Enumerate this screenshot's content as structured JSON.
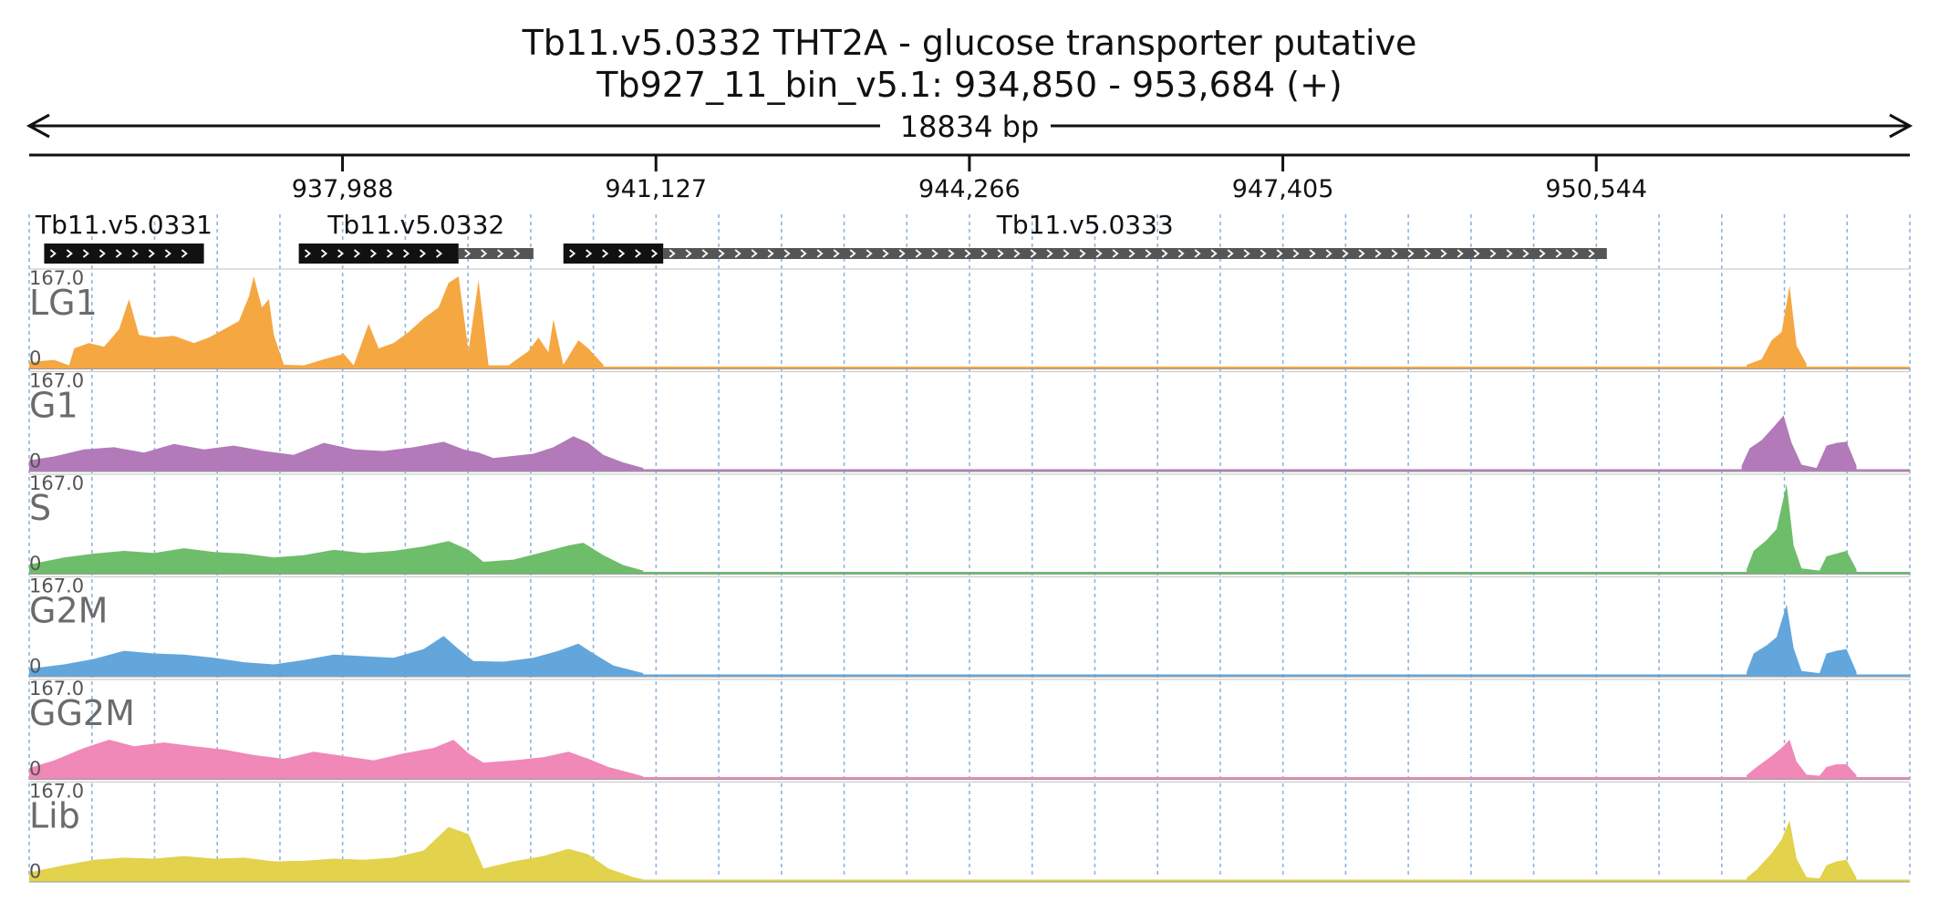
{
  "header": {
    "title_line1": "Tb11.v5.0332  THT2A - glucose transporter  putative",
    "title_line2": "Tb927_11_bin_v5.1: 934,850 - 953,684 (+)",
    "span_label": "18834 bp"
  },
  "chart_data": {
    "type": "area",
    "region": {
      "chromosome": "Tb927_11_bin_v5.1",
      "start": 934850,
      "end": 953684,
      "strand": "+"
    },
    "ticks": [
      {
        "position": 937988,
        "label": "937,988"
      },
      {
        "position": 941127,
        "label": "941,127"
      },
      {
        "position": 944266,
        "label": "944,266"
      },
      {
        "position": 947405,
        "label": "947,405"
      },
      {
        "position": 950544,
        "label": "950,544"
      }
    ],
    "genes": [
      {
        "name": "Tb11.v5.0331",
        "label": "Tb11.v5.0331",
        "cds": [
          935000,
          936600
        ],
        "utr": []
      },
      {
        "name": "Tb11.v5.0332",
        "label": "Tb11.v5.0332",
        "cds": [
          937550,
          939150
        ],
        "utr": [
          [
            939150,
            939900
          ]
        ]
      },
      {
        "name": "Tb11.v5.0333",
        "label": "Tb11.v5.0333",
        "cds": [
          940200,
          941200
        ],
        "utr": [
          [
            941200,
            950650
          ]
        ]
      }
    ],
    "y_range": [
      0,
      167
    ],
    "ymax_label": "167.0",
    "ymin_label": "0",
    "tracks": [
      {
        "name": "LG1",
        "color": "#f5a742",
        "points": [
          [
            934850,
            10
          ],
          [
            935100,
            14
          ],
          [
            935250,
            4
          ],
          [
            935300,
            35
          ],
          [
            935450,
            45
          ],
          [
            935600,
            38
          ],
          [
            935750,
            70
          ],
          [
            935850,
            125
          ],
          [
            935950,
            60
          ],
          [
            936100,
            55
          ],
          [
            936300,
            58
          ],
          [
            936500,
            45
          ],
          [
            936650,
            55
          ],
          [
            936800,
            70
          ],
          [
            936950,
            85
          ],
          [
            937050,
            130
          ],
          [
            937100,
            180
          ],
          [
            937180,
            110
          ],
          [
            937250,
            125
          ],
          [
            937300,
            60
          ],
          [
            937400,
            5
          ],
          [
            937600,
            4
          ],
          [
            937800,
            15
          ],
          [
            938000,
            25
          ],
          [
            938100,
            4
          ],
          [
            938250,
            80
          ],
          [
            938350,
            35
          ],
          [
            938500,
            45
          ],
          [
            938650,
            65
          ],
          [
            938800,
            90
          ],
          [
            938950,
            110
          ],
          [
            939050,
            155
          ],
          [
            939150,
            175
          ],
          [
            939250,
            30
          ],
          [
            939350,
            160
          ],
          [
            939450,
            4
          ],
          [
            939650,
            4
          ],
          [
            939850,
            30
          ],
          [
            939950,
            55
          ],
          [
            940050,
            28
          ],
          [
            940100,
            88
          ],
          [
            940200,
            5
          ],
          [
            940350,
            50
          ],
          [
            940450,
            35
          ],
          [
            940600,
            5
          ]
        ]
      },
      {
        "name": "G1",
        "color": "#b27ab9",
        "points": [
          [
            934850,
            18
          ],
          [
            935100,
            25
          ],
          [
            935400,
            38
          ],
          [
            935700,
            42
          ],
          [
            936000,
            32
          ],
          [
            936300,
            48
          ],
          [
            936600,
            38
          ],
          [
            936900,
            45
          ],
          [
            937200,
            35
          ],
          [
            937500,
            28
          ],
          [
            937800,
            50
          ],
          [
            938100,
            38
          ],
          [
            938400,
            35
          ],
          [
            938700,
            42
          ],
          [
            939000,
            52
          ],
          [
            939200,
            38
          ],
          [
            939350,
            32
          ],
          [
            939500,
            22
          ],
          [
            939700,
            26
          ],
          [
            939900,
            30
          ],
          [
            940100,
            42
          ],
          [
            940300,
            62
          ],
          [
            940450,
            50
          ],
          [
            940600,
            28
          ],
          [
            940800,
            14
          ],
          [
            941000,
            4
          ]
        ]
      },
      {
        "name": "S",
        "color": "#6ebd6a",
        "points": [
          [
            934850,
            15
          ],
          [
            935200,
            28
          ],
          [
            935500,
            35
          ],
          [
            935800,
            40
          ],
          [
            936100,
            36
          ],
          [
            936400,
            45
          ],
          [
            936700,
            38
          ],
          [
            937000,
            35
          ],
          [
            937300,
            28
          ],
          [
            937600,
            32
          ],
          [
            937900,
            42
          ],
          [
            938200,
            36
          ],
          [
            938500,
            40
          ],
          [
            938800,
            48
          ],
          [
            939050,
            58
          ],
          [
            939250,
            42
          ],
          [
            939400,
            20
          ],
          [
            939700,
            24
          ],
          [
            940000,
            38
          ],
          [
            940250,
            50
          ],
          [
            940400,
            55
          ],
          [
            940600,
            32
          ],
          [
            940800,
            14
          ],
          [
            941000,
            4
          ]
        ]
      },
      {
        "name": "G2M",
        "color": "#62a6dc",
        "points": [
          [
            934850,
            12
          ],
          [
            935200,
            20
          ],
          [
            935500,
            30
          ],
          [
            935800,
            45
          ],
          [
            936100,
            40
          ],
          [
            936400,
            38
          ],
          [
            936700,
            32
          ],
          [
            937000,
            24
          ],
          [
            937300,
            20
          ],
          [
            937600,
            28
          ],
          [
            937900,
            38
          ],
          [
            938200,
            35
          ],
          [
            938500,
            32
          ],
          [
            938800,
            48
          ],
          [
            939000,
            72
          ],
          [
            939150,
            48
          ],
          [
            939300,
            26
          ],
          [
            939600,
            25
          ],
          [
            939900,
            32
          ],
          [
            940150,
            45
          ],
          [
            940350,
            58
          ],
          [
            940500,
            40
          ],
          [
            940700,
            18
          ],
          [
            941000,
            4
          ]
        ]
      },
      {
        "name": "GG2M",
        "color": "#f088b8",
        "points": [
          [
            934850,
            18
          ],
          [
            935100,
            32
          ],
          [
            935400,
            55
          ],
          [
            935650,
            70
          ],
          [
            935900,
            58
          ],
          [
            936200,
            65
          ],
          [
            936500,
            58
          ],
          [
            936800,
            52
          ],
          [
            937100,
            42
          ],
          [
            937400,
            35
          ],
          [
            937700,
            48
          ],
          [
            938000,
            40
          ],
          [
            938300,
            32
          ],
          [
            938600,
            45
          ],
          [
            938900,
            55
          ],
          [
            939100,
            70
          ],
          [
            939250,
            45
          ],
          [
            939400,
            28
          ],
          [
            939700,
            32
          ],
          [
            940000,
            38
          ],
          [
            940250,
            48
          ],
          [
            940450,
            35
          ],
          [
            940650,
            20
          ],
          [
            940900,
            8
          ],
          [
            941000,
            3
          ]
        ]
      },
      {
        "name": "Lib",
        "color": "#e2d24c",
        "points": [
          [
            934850,
            15
          ],
          [
            935200,
            28
          ],
          [
            935500,
            38
          ],
          [
            935800,
            42
          ],
          [
            936100,
            40
          ],
          [
            936400,
            45
          ],
          [
            936700,
            40
          ],
          [
            937000,
            42
          ],
          [
            937300,
            35
          ],
          [
            937600,
            36
          ],
          [
            937900,
            40
          ],
          [
            938200,
            38
          ],
          [
            938500,
            42
          ],
          [
            938800,
            55
          ],
          [
            939050,
            98
          ],
          [
            939250,
            85
          ],
          [
            939400,
            22
          ],
          [
            939700,
            35
          ],
          [
            940000,
            45
          ],
          [
            940250,
            58
          ],
          [
            940450,
            48
          ],
          [
            940650,
            22
          ],
          [
            940900,
            6
          ],
          [
            941000,
            2
          ]
        ]
      }
    ],
    "secondary": [
      [
        [
          952050,
          5
        ],
        [
          952200,
          15
        ],
        [
          952300,
          50
        ],
        [
          952400,
          65
        ],
        [
          952480,
          150
        ],
        [
          952550,
          40
        ],
        [
          952650,
          6
        ]
      ],
      [
        [
          952000,
          8
        ],
        [
          952080,
          40
        ],
        [
          952200,
          55
        ],
        [
          952300,
          75
        ],
        [
          952420,
          100
        ],
        [
          952500,
          50
        ],
        [
          952600,
          10
        ],
        [
          952750,
          4
        ],
        [
          952850,
          45
        ],
        [
          952950,
          50
        ],
        [
          953050,
          52
        ],
        [
          953150,
          8
        ]
      ],
      [
        [
          952050,
          6
        ],
        [
          952120,
          40
        ],
        [
          952250,
          60
        ],
        [
          952350,
          80
        ],
        [
          952450,
          162
        ],
        [
          952520,
          50
        ],
        [
          952600,
          8
        ],
        [
          952780,
          4
        ],
        [
          952850,
          30
        ],
        [
          952950,
          35
        ],
        [
          953050,
          40
        ],
        [
          953150,
          6
        ]
      ],
      [
        [
          952050,
          6
        ],
        [
          952120,
          40
        ],
        [
          952250,
          55
        ],
        [
          952350,
          70
        ],
        [
          952450,
          130
        ],
        [
          952520,
          50
        ],
        [
          952600,
          8
        ],
        [
          952780,
          4
        ],
        [
          952850,
          40
        ],
        [
          952950,
          45
        ],
        [
          953050,
          48
        ],
        [
          953150,
          6
        ]
      ],
      [
        [
          952050,
          5
        ],
        [
          952150,
          20
        ],
        [
          952300,
          40
        ],
        [
          952400,
          55
        ],
        [
          952480,
          70
        ],
        [
          952550,
          30
        ],
        [
          952650,
          6
        ],
        [
          952780,
          4
        ],
        [
          952850,
          20
        ],
        [
          952950,
          25
        ],
        [
          953050,
          25
        ],
        [
          953150,
          5
        ]
      ],
      [
        [
          952050,
          5
        ],
        [
          952150,
          20
        ],
        [
          952300,
          50
        ],
        [
          952400,
          75
        ],
        [
          952480,
          110
        ],
        [
          952550,
          40
        ],
        [
          952650,
          6
        ],
        [
          952780,
          4
        ],
        [
          952850,
          28
        ],
        [
          952950,
          35
        ],
        [
          953050,
          38
        ],
        [
          953150,
          5
        ]
      ]
    ]
  }
}
